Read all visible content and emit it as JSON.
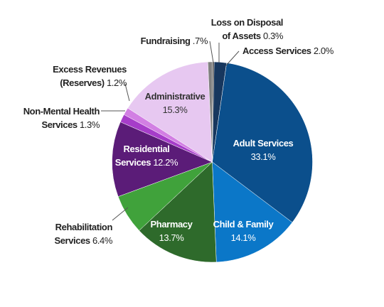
{
  "chart_data": {
    "type": "pie",
    "categories": [
      "Loss on Disposal of Assets",
      "Access Services",
      "Adult Services",
      "Child & Family",
      "Pharmacy",
      "Rehabilitation Services",
      "Residential Services",
      "Non-Mental Health Services",
      "Excess Revenues (Reserves)",
      "Administrative",
      "Fundraising"
    ],
    "values": [
      0.3,
      2.0,
      33.1,
      14.1,
      13.7,
      6.4,
      12.2,
      1.3,
      1.2,
      15.3,
      0.7
    ],
    "value_labels": [
      "0.3%",
      "2.0%",
      "33.1%",
      "14.1%",
      "13.7%",
      "6.4%",
      "12.2%",
      "1.3%",
      "1.2%",
      "15.3%",
      ".7%"
    ],
    "colors": [
      "#4d4d4f",
      "#17375e",
      "#0b4f8c",
      "#0b77c8",
      "#2e6a2b",
      "#40a23b",
      "#5b1c78",
      "#a63dc9",
      "#d27fe3",
      "#e7c8f1",
      "#808080"
    ]
  }
}
